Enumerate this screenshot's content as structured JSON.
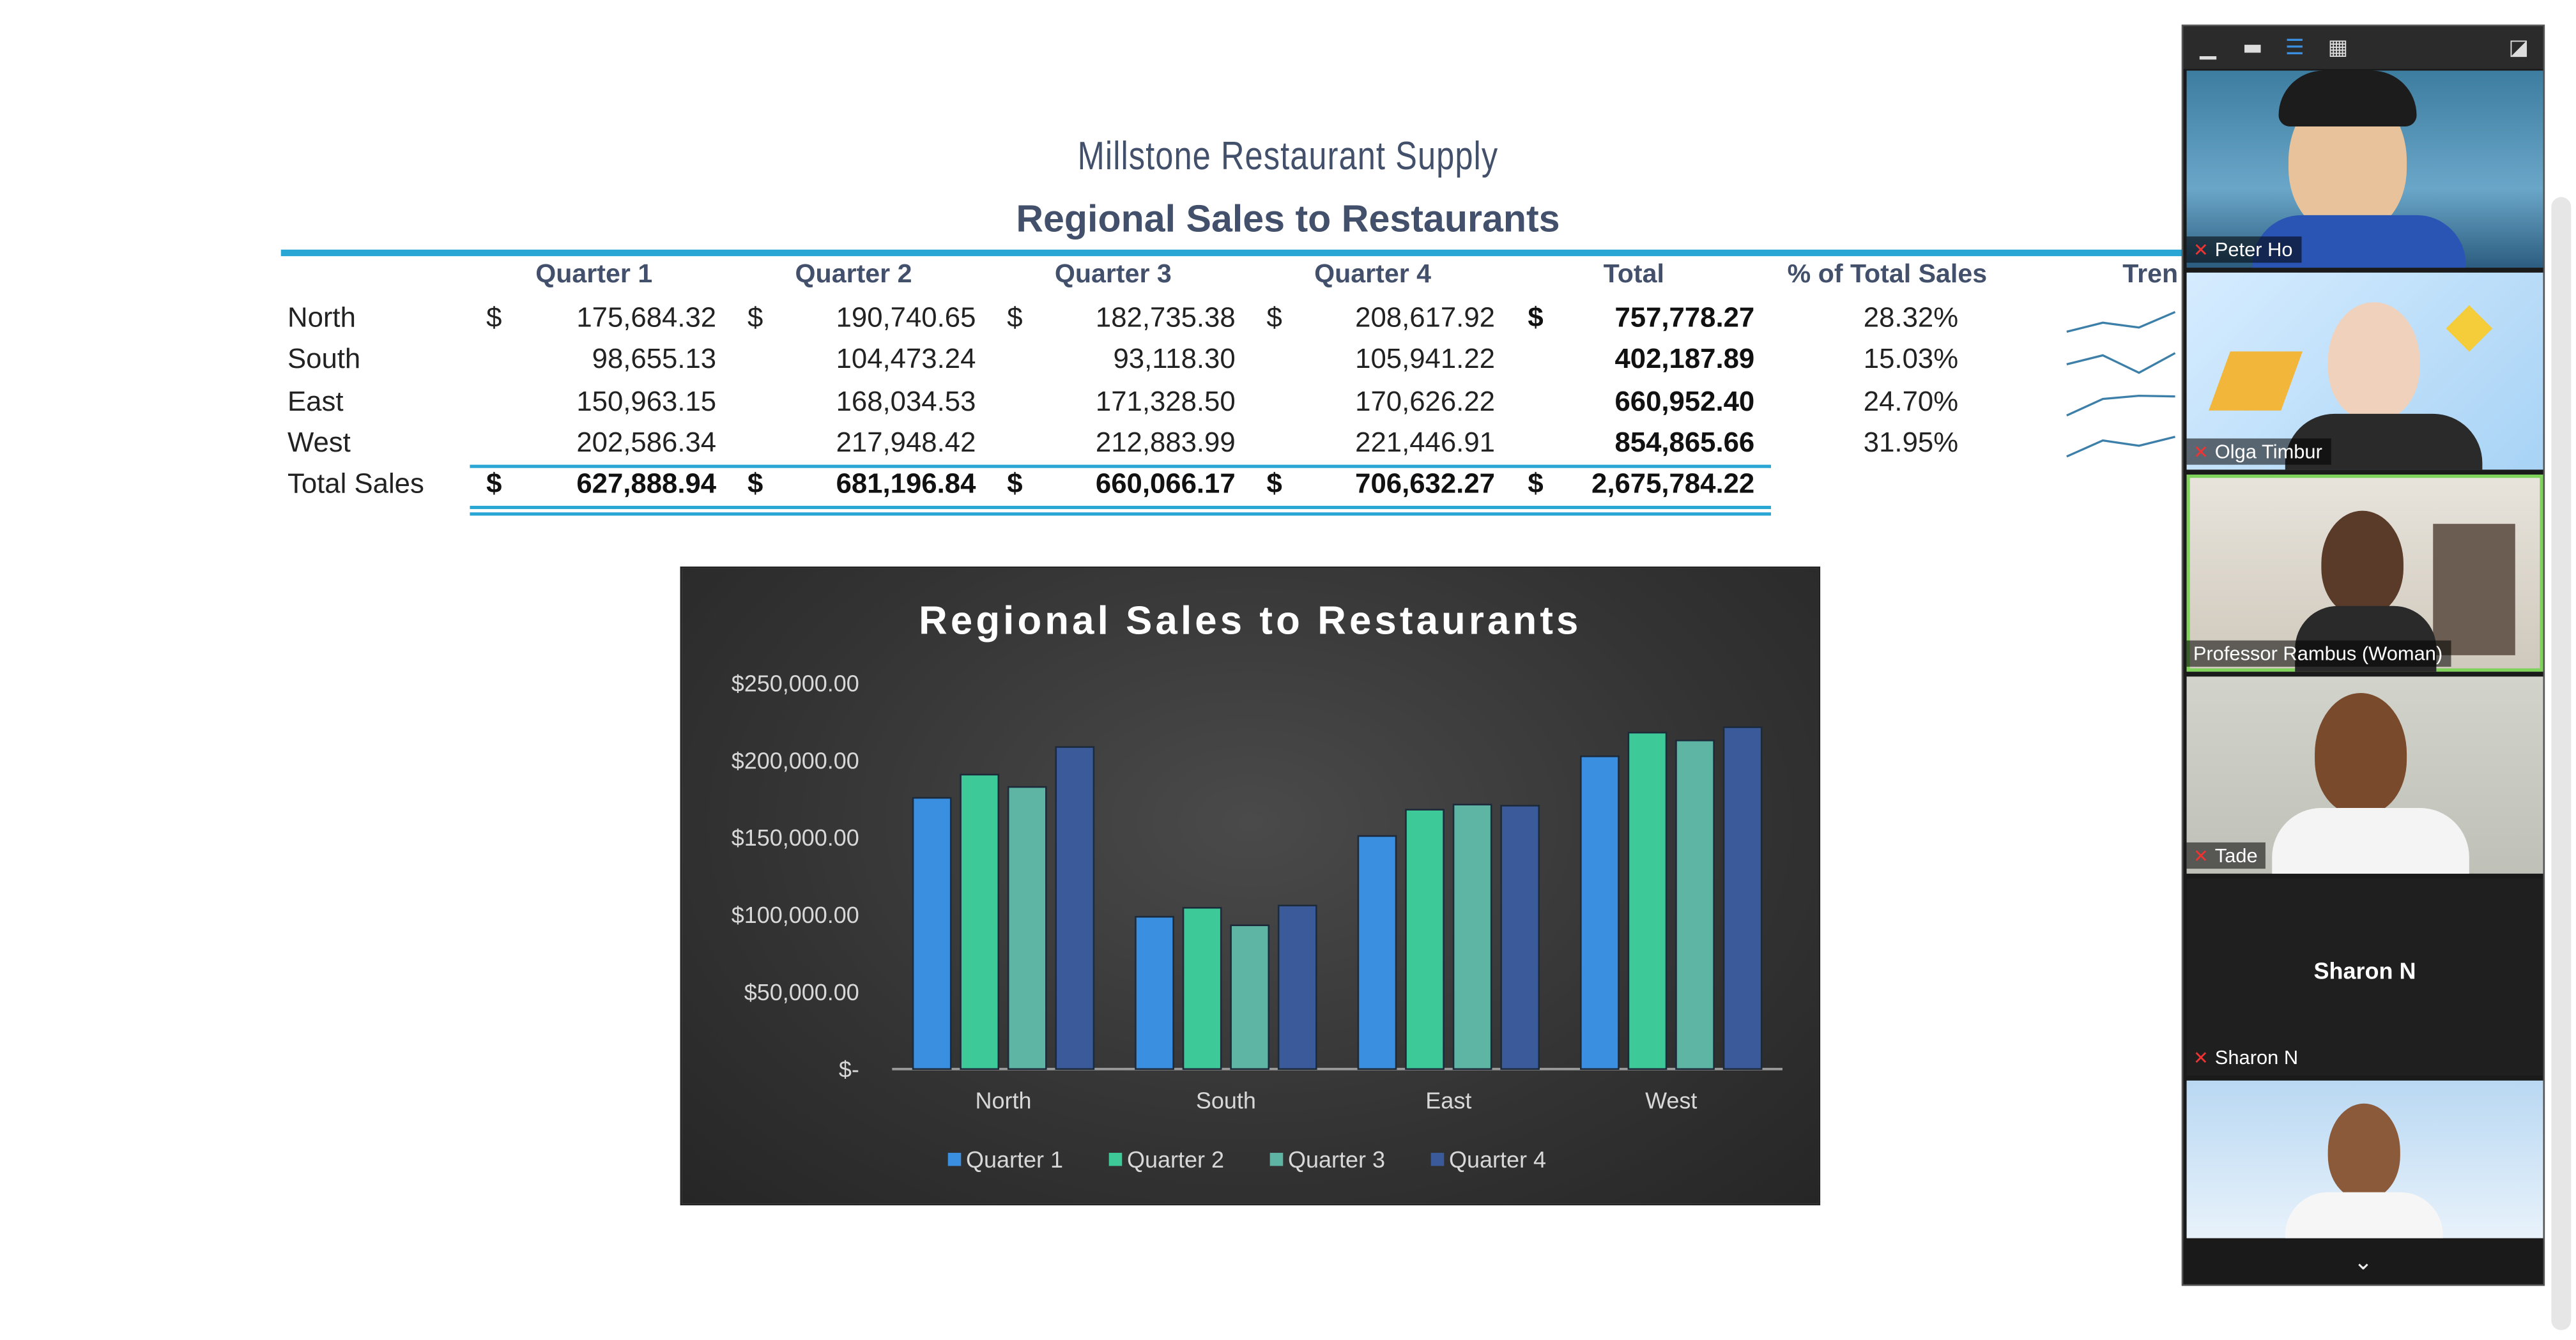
{
  "sheet": {
    "company": "Millstone Restaurant Supply",
    "title": "Regional Sales to Restaurants",
    "headers": [
      "Quarter 1",
      "Quarter 2",
      "Quarter 3",
      "Quarter 4",
      "Total",
      "% of Total Sales",
      "Tren"
    ],
    "rows": [
      {
        "label": "North",
        "q1": "175,684.32",
        "q2": "190,740.65",
        "q3": "182,735.38",
        "q4": "208,617.92",
        "total": "757,778.27",
        "pct": "28.32%"
      },
      {
        "label": "South",
        "q1": "98,655.13",
        "q2": "104,473.24",
        "q3": "93,118.30",
        "q4": "105,941.22",
        "total": "402,187.89",
        "pct": "15.03%"
      },
      {
        "label": "East",
        "q1": "150,963.15",
        "q2": "168,034.53",
        "q3": "171,328.50",
        "q4": "170,626.22",
        "total": "660,952.40",
        "pct": "24.70%"
      },
      {
        "label": "West",
        "q1": "202,586.34",
        "q2": "217,948.42",
        "q3": "212,883.99",
        "q4": "221,446.91",
        "total": "854,865.66",
        "pct": "31.95%"
      }
    ],
    "total_row": {
      "label": "Total Sales",
      "q1": "627,888.94",
      "q2": "681,196.84",
      "q3": "660,066.17",
      "q4": "706,632.27",
      "total": "2,675,784.22"
    },
    "currency": "$"
  },
  "chart_data": {
    "type": "bar",
    "title": "Regional Sales to Restaurants",
    "categories": [
      "North",
      "South",
      "East",
      "West"
    ],
    "series": [
      {
        "name": "Quarter 1",
        "color": "#3a8fe0",
        "values": [
          175684.32,
          98655.13,
          150963.15,
          202586.34
        ]
      },
      {
        "name": "Quarter 2",
        "color": "#3ec999",
        "values": [
          190740.65,
          104473.24,
          168034.53,
          217948.42
        ]
      },
      {
        "name": "Quarter 3",
        "color": "#5fb5a3",
        "values": [
          182735.38,
          93118.3,
          171328.5,
          212883.99
        ]
      },
      {
        "name": "Quarter 4",
        "color": "#3b5a9a",
        "values": [
          208617.92,
          105941.22,
          170626.22,
          221446.91
        ]
      }
    ],
    "yticks": [
      "$-",
      "$50,000.00",
      "$100,000.00",
      "$150,000.00",
      "$200,000.00",
      "$250,000.00"
    ],
    "ylim": [
      0,
      250000
    ],
    "legend": "bottom",
    "grid": false
  },
  "zoom": {
    "participants": [
      {
        "name": "Peter Ho",
        "muted": true
      },
      {
        "name": "Olga Timbur",
        "muted": true
      },
      {
        "name": "Professor Rambus (Woman)",
        "muted": false
      },
      {
        "name": "Tade",
        "muted": true
      },
      {
        "name": "Sharon N",
        "muted": true
      }
    ],
    "center_name": "Sharon N"
  }
}
